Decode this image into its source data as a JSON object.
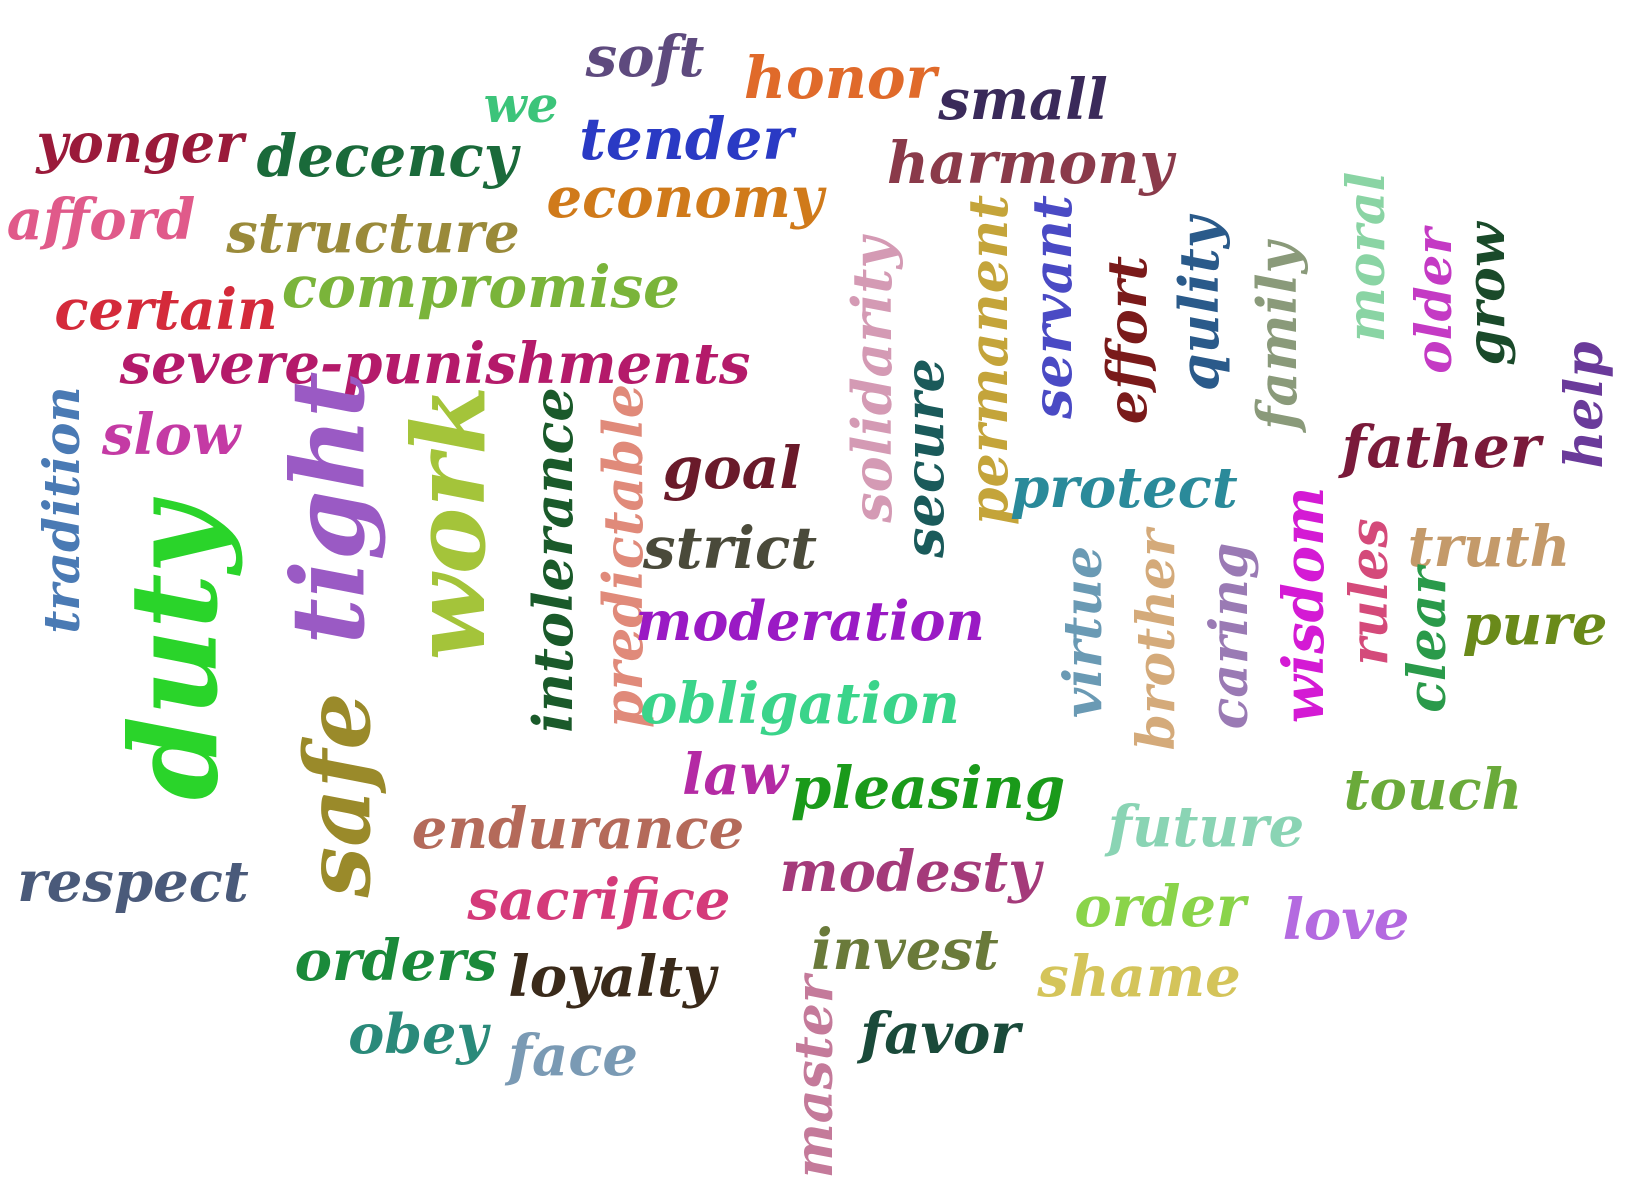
{
  "words": [
    {
      "text": "soft",
      "color": "#5e4a7e",
      "orientation": "horizontal",
      "weight": 2
    },
    {
      "text": "honor",
      "color": "#e06a2a",
      "orientation": "horizontal",
      "weight": 2
    },
    {
      "text": "we",
      "color": "#3cc47a",
      "orientation": "horizontal",
      "weight": 1
    },
    {
      "text": "small",
      "color": "#3a2a5a",
      "orientation": "horizontal",
      "weight": 2
    },
    {
      "text": "yonger",
      "color": "#9a1a3a",
      "orientation": "horizontal",
      "weight": 2
    },
    {
      "text": "tender",
      "color": "#2a3ac4",
      "orientation": "horizontal",
      "weight": 2
    },
    {
      "text": "decency",
      "color": "#1a6a3a",
      "orientation": "horizontal",
      "weight": 2
    },
    {
      "text": "harmony",
      "color": "#8a3a4a",
      "orientation": "horizontal",
      "weight": 2
    },
    {
      "text": "economy",
      "color": "#d07a1a",
      "orientation": "horizontal",
      "weight": 2
    },
    {
      "text": "afford",
      "color": "#e05a8a",
      "orientation": "horizontal",
      "weight": 2
    },
    {
      "text": "structure",
      "color": "#9a8a3a",
      "orientation": "horizontal",
      "weight": 2
    },
    {
      "text": "compromise",
      "color": "#7ab43a",
      "orientation": "horizontal",
      "weight": 2
    },
    {
      "text": "certain",
      "color": "#d42a3a",
      "orientation": "horizontal",
      "weight": 2
    },
    {
      "text": "severe-punishments",
      "color": "#b41a6a",
      "orientation": "horizontal",
      "weight": 2
    },
    {
      "text": "slow",
      "color": "#c43aa4",
      "orientation": "horizontal",
      "weight": 2
    },
    {
      "text": "tradition",
      "color": "#4a7ab4",
      "orientation": "vertical",
      "weight": 2
    },
    {
      "text": "duty",
      "color": "#2ad42a",
      "orientation": "vertical",
      "weight": 5
    },
    {
      "text": "tight",
      "color": "#9a5ac4",
      "orientation": "vertical",
      "weight": 4
    },
    {
      "text": "work",
      "color": "#a4c43a",
      "orientation": "vertical",
      "weight": 4
    },
    {
      "text": "intolerance",
      "color": "#1a5a2a",
      "orientation": "vertical",
      "weight": 2
    },
    {
      "text": "predictable",
      "color": "#e08a7a",
      "orientation": "vertical",
      "weight": 2
    },
    {
      "text": "solidarity",
      "color": "#d49ab4",
      "orientation": "vertical",
      "weight": 2
    },
    {
      "text": "secure",
      "color": "#1a5a5a",
      "orientation": "vertical",
      "weight": 2
    },
    {
      "text": "permanent",
      "color": "#c4a43a",
      "orientation": "vertical",
      "weight": 2
    },
    {
      "text": "servant",
      "color": "#4a4ac4",
      "orientation": "vertical",
      "weight": 2
    },
    {
      "text": "effort",
      "color": "#7a1a1a",
      "orientation": "vertical",
      "weight": 2
    },
    {
      "text": "qulity",
      "color": "#2a5a8a",
      "orientation": "vertical",
      "weight": 2
    },
    {
      "text": "family",
      "color": "#8a9a7a",
      "orientation": "vertical",
      "weight": 2
    },
    {
      "text": "moral",
      "color": "#8ad4a4",
      "orientation": "vertical",
      "weight": 2
    },
    {
      "text": "older",
      "color": "#c43ac4",
      "orientation": "vertical",
      "weight": 2
    },
    {
      "text": "grow",
      "color": "#1a4a2a",
      "orientation": "vertical",
      "weight": 2
    },
    {
      "text": "help",
      "color": "#6a3a9a",
      "orientation": "vertical",
      "weight": 2
    },
    {
      "text": "goal",
      "color": "#6a1a2a",
      "orientation": "horizontal",
      "weight": 2
    },
    {
      "text": "strict",
      "color": "#4a4a3a",
      "orientation": "horizontal",
      "weight": 2
    },
    {
      "text": "protect",
      "color": "#2a8a9a",
      "orientation": "horizontal",
      "weight": 2
    },
    {
      "text": "father",
      "color": "#7a1a3a",
      "orientation": "horizontal",
      "weight": 2
    },
    {
      "text": "truth",
      "color": "#c49a6a",
      "orientation": "horizontal",
      "weight": 2
    },
    {
      "text": "moderation",
      "color": "#9a1ac4",
      "orientation": "horizontal",
      "weight": 2
    },
    {
      "text": "obligation",
      "color": "#3ad48a",
      "orientation": "horizontal",
      "weight": 2
    },
    {
      "text": "virtue",
      "color": "#6a9ab4",
      "orientation": "vertical",
      "weight": 2
    },
    {
      "text": "brother",
      "color": "#d4aa7a",
      "orientation": "vertical",
      "weight": 2
    },
    {
      "text": "caring",
      "color": "#9a7ab4",
      "orientation": "vertical",
      "weight": 2
    },
    {
      "text": "wisdom",
      "color": "#d41ad4",
      "orientation": "vertical",
      "weight": 2
    },
    {
      "text": "rules",
      "color": "#d44a7a",
      "orientation": "vertical",
      "weight": 2
    },
    {
      "text": "clear",
      "color": "#2a9a4a",
      "orientation": "vertical",
      "weight": 2
    },
    {
      "text": "pure",
      "color": "#6a8a1a",
      "orientation": "horizontal",
      "weight": 2
    },
    {
      "text": "safe",
      "color": "#9a8a2a",
      "orientation": "vertical",
      "weight": 4
    },
    {
      "text": "law",
      "color": "#b42aa4",
      "orientation": "horizontal",
      "weight": 2
    },
    {
      "text": "pleasing",
      "color": "#1a9a1a",
      "orientation": "horizontal",
      "weight": 2
    },
    {
      "text": "touch",
      "color": "#6aaa3a",
      "orientation": "horizontal",
      "weight": 2
    },
    {
      "text": "endurance",
      "color": "#b46a5a",
      "orientation": "horizontal",
      "weight": 2
    },
    {
      "text": "future",
      "color": "#8ad4b4",
      "orientation": "horizontal",
      "weight": 2
    },
    {
      "text": "respect",
      "color": "#4a5a7a",
      "orientation": "horizontal",
      "weight": 2
    },
    {
      "text": "modesty",
      "color": "#a43a7a",
      "orientation": "horizontal",
      "weight": 2
    },
    {
      "text": "sacrifice",
      "color": "#d43a7a",
      "orientation": "horizontal",
      "weight": 2
    },
    {
      "text": "order",
      "color": "#8ad44a",
      "orientation": "horizontal",
      "weight": 2
    },
    {
      "text": "love",
      "color": "#b46ae0",
      "orientation": "horizontal",
      "weight": 2
    },
    {
      "text": "orders",
      "color": "#1a8a3a",
      "orientation": "horizontal",
      "weight": 2
    },
    {
      "text": "invest",
      "color": "#6a7a3a",
      "orientation": "horizontal",
      "weight": 2
    },
    {
      "text": "loyalty",
      "color": "#3a2a1a",
      "orientation": "horizontal",
      "weight": 2
    },
    {
      "text": "shame",
      "color": "#d4c45a",
      "orientation": "horizontal",
      "weight": 2
    },
    {
      "text": "obey",
      "color": "#2a8a7a",
      "orientation": "horizontal",
      "weight": 2
    },
    {
      "text": "face",
      "color": "#7a9ab4",
      "orientation": "horizontal",
      "weight": 2
    },
    {
      "text": "master",
      "color": "#c47a9a",
      "orientation": "vertical",
      "weight": 2
    },
    {
      "text": "favor",
      "color": "#1a4a3a",
      "orientation": "horizontal",
      "weight": 2
    }
  ]
}
